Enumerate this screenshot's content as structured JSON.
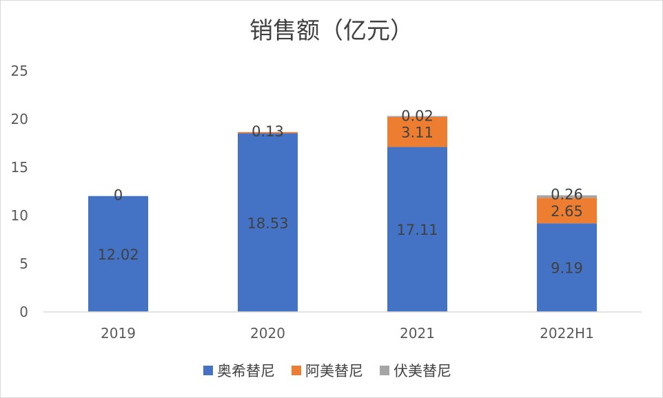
{
  "chart_data": {
    "type": "bar",
    "stacked": true,
    "title": "销售额（亿元）",
    "xlabel": "",
    "ylabel": "",
    "categories": [
      "2019",
      "2020",
      "2021",
      "2022H1"
    ],
    "series": [
      {
        "name": "奥希替尼",
        "color": "#4472C4",
        "values": [
          12.02,
          18.53,
          17.11,
          9.19
        ],
        "labels": [
          "12.02",
          "18.53",
          "17.11",
          "9.19"
        ]
      },
      {
        "name": "阿美替尼",
        "color": "#ED7D31",
        "values": [
          0,
          0.13,
          3.11,
          2.65
        ],
        "labels": [
          "0",
          "0.13",
          "3.11",
          "2.65"
        ]
      },
      {
        "name": "伏美替尼",
        "color": "#A5A5A5",
        "values": [
          0,
          0,
          0.02,
          0.26
        ],
        "labels": [
          "",
          "",
          "0.02",
          "0.26"
        ]
      }
    ],
    "ylim": [
      0,
      25
    ],
    "yticks": [
      0,
      5,
      10,
      15,
      20,
      25
    ],
    "grid": false,
    "legend": "bottom"
  }
}
